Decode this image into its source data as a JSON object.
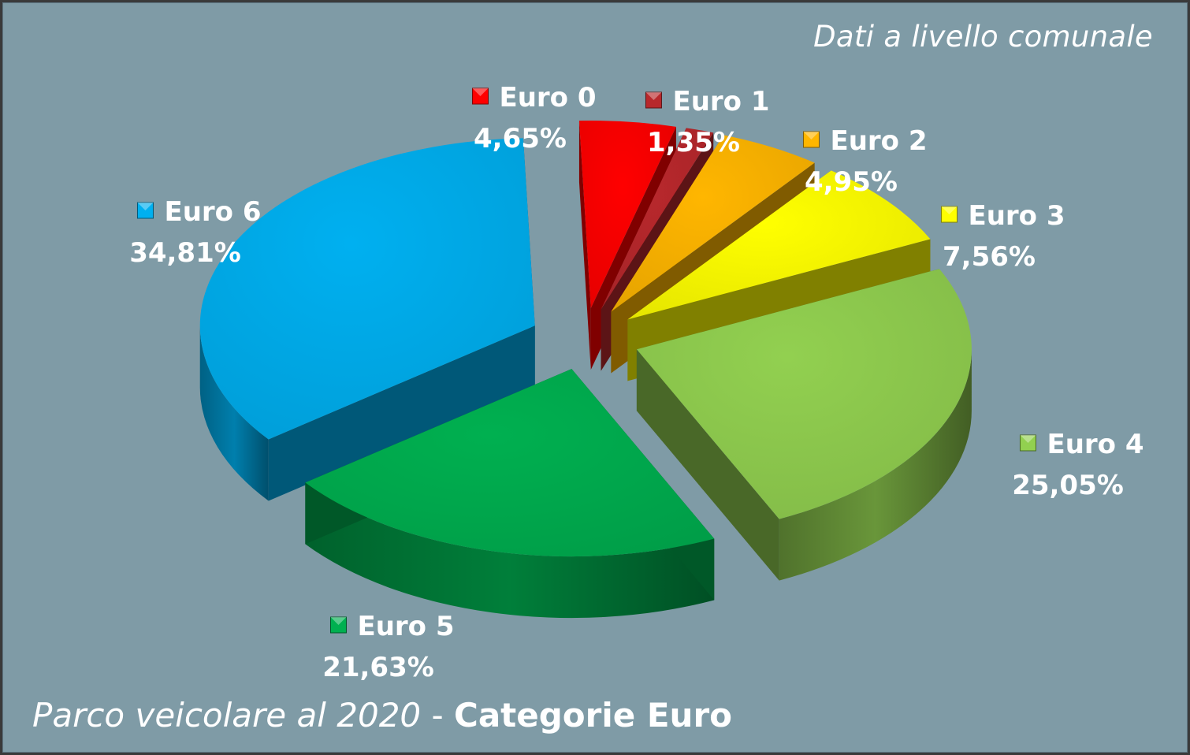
{
  "note": "Dati a livello comunale",
  "footer": {
    "part1": "Parco veicolare al 2020",
    "sep": " - ",
    "part2": "Categorie Euro"
  },
  "chart_data": {
    "type": "pie",
    "categories": [
      "Euro 0",
      "Euro 1",
      "Euro 2",
      "Euro 3",
      "Euro 4",
      "Euro 5",
      "Euro 6"
    ],
    "values": [
      4.65,
      1.35,
      4.95,
      7.56,
      25.05,
      21.63,
      34.81
    ],
    "labels": [
      "4,65%",
      "1,35%",
      "4,95%",
      "7,56%",
      "25,05%",
      "21,63%",
      "34,81%"
    ],
    "colors": [
      "#ff0000",
      "#b8282c",
      "#ffb600",
      "#ffff00",
      "#92d050",
      "#00b050",
      "#00b0f0"
    ],
    "style": "3d-exploded",
    "legend": "labels-beside-slices"
  }
}
